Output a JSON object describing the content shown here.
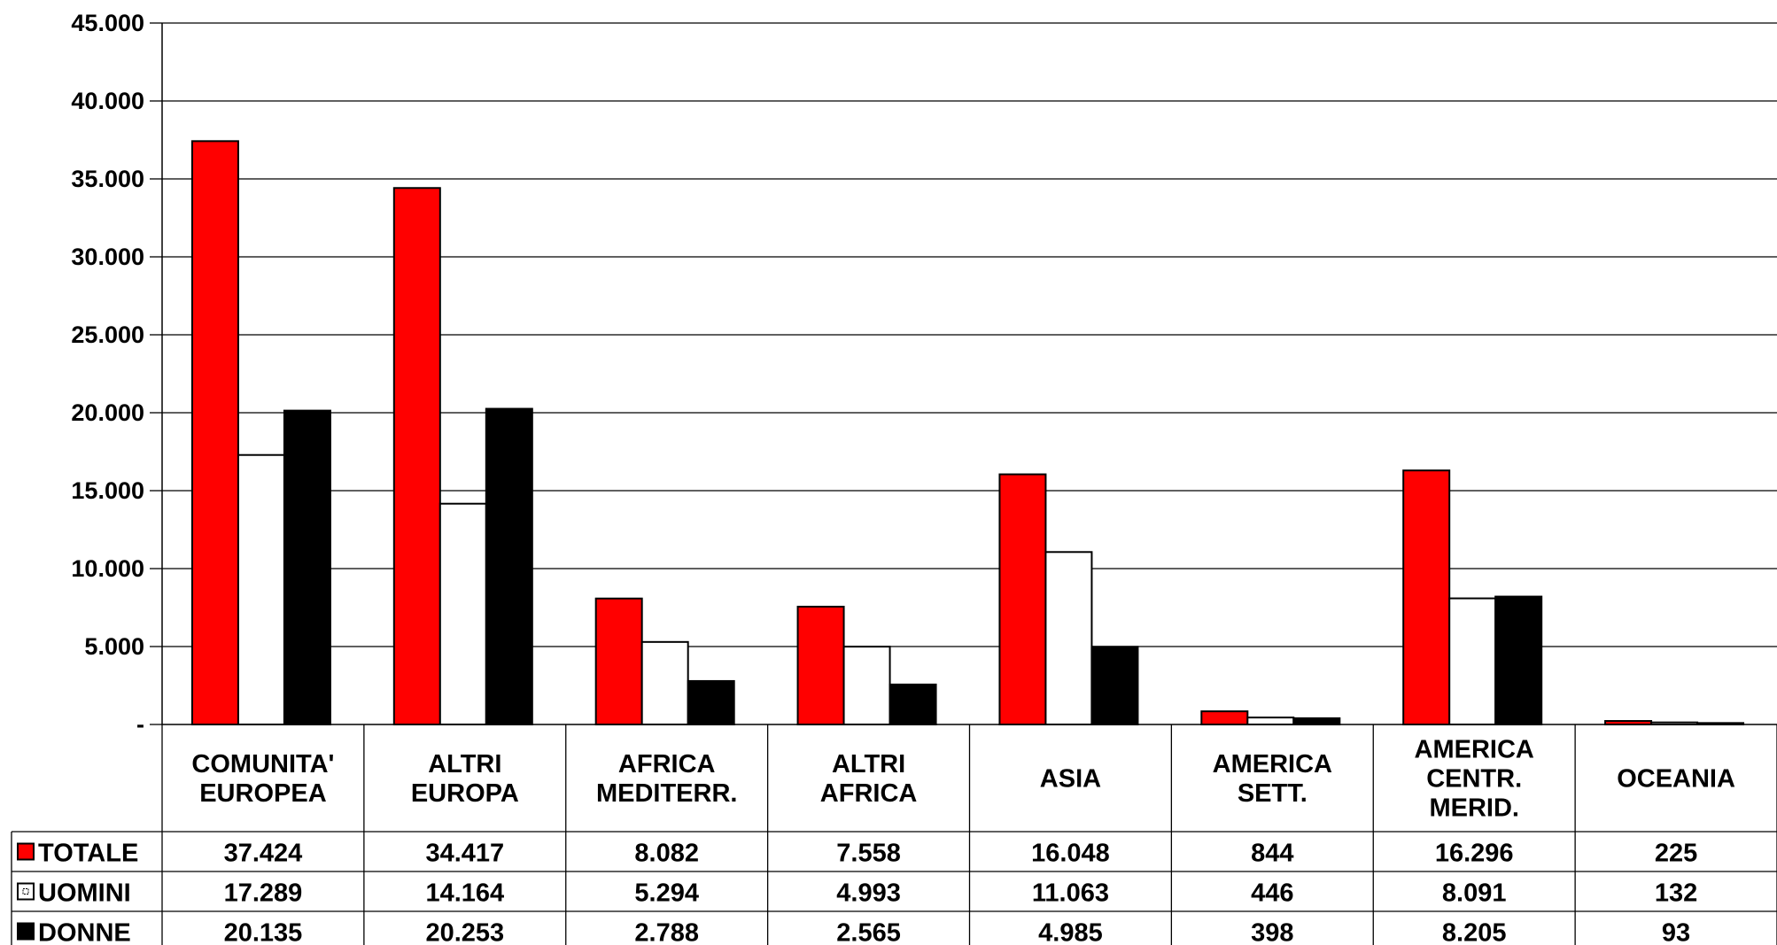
{
  "chart_data": {
    "type": "bar",
    "title": "",
    "xlabel": "",
    "ylabel": "",
    "ylim": [
      0,
      45000
    ],
    "yticks": [
      {
        "value": 0,
        "label": "-"
      },
      {
        "value": 5000,
        "label": "5.000"
      },
      {
        "value": 10000,
        "label": "10.000"
      },
      {
        "value": 15000,
        "label": "15.000"
      },
      {
        "value": 20000,
        "label": "20.000"
      },
      {
        "value": 25000,
        "label": "25.000"
      },
      {
        "value": 30000,
        "label": "30.000"
      },
      {
        "value": 35000,
        "label": "35.000"
      },
      {
        "value": 40000,
        "label": "40.000"
      },
      {
        "value": 45000,
        "label": "45.000"
      }
    ],
    "grid": true,
    "legend": "data-table",
    "categories": [
      [
        "COMUNITA'",
        "EUROPEA"
      ],
      [
        "ALTRI",
        "EUROPA"
      ],
      [
        "AFRICA",
        "MEDITERR."
      ],
      [
        "ALTRI",
        "AFRICA"
      ],
      [
        "ASIA"
      ],
      [
        "AMERICA",
        "SETT."
      ],
      [
        "AMERICA",
        "CENTR.",
        "MERID."
      ],
      [
        "OCEANIA"
      ]
    ],
    "series": [
      {
        "name": "TOTALE",
        "color": "#ff0000",
        "values": [
          37424,
          34417,
          8082,
          7558,
          16048,
          844,
          16296,
          225
        ],
        "labels": [
          "37.424",
          "34.417",
          "8.082",
          "7.558",
          "16.048",
          "844",
          "16.296",
          "225"
        ]
      },
      {
        "name": "UOMINI",
        "color": "#ffffff",
        "values": [
          17289,
          14164,
          5294,
          4993,
          11063,
          446,
          8091,
          132
        ],
        "labels": [
          "17.289",
          "14.164",
          "5.294",
          "4.993",
          "11.063",
          "446",
          "8.091",
          "132"
        ]
      },
      {
        "name": "DONNE",
        "color": "#000000",
        "values": [
          20135,
          20253,
          2788,
          2565,
          4985,
          398,
          8205,
          93
        ],
        "labels": [
          "20.135",
          "20.253",
          "2.788",
          "2.565",
          "4.985",
          "398",
          "8.205",
          "93"
        ]
      }
    ]
  }
}
